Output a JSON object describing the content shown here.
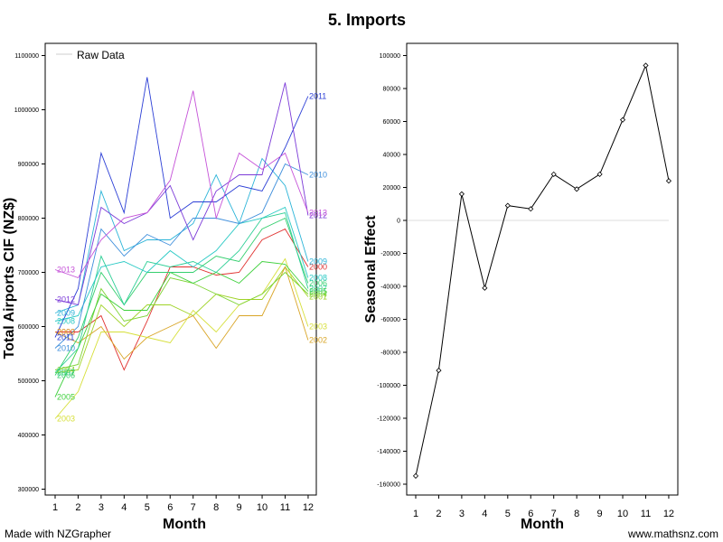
{
  "title": "5. Imports",
  "footer": {
    "left": "Made with NZGrapher",
    "right": "www.mathsnz.com"
  },
  "chart_data": [
    {
      "type": "line",
      "ylabel": "Total Airports CIF (NZ$)",
      "xlabel": "Month",
      "legend": {
        "label": "Raw Data",
        "position": "top-left"
      },
      "x": [
        1,
        2,
        3,
        4,
        5,
        6,
        7,
        8,
        9,
        10,
        11,
        12
      ],
      "ylim": [
        290000,
        1100000
      ],
      "yticks": [
        300000,
        400000,
        500000,
        600000,
        700000,
        800000,
        900000,
        1000000,
        1100000
      ],
      "series": [
        {
          "name": "2000",
          "color": "#e0302e",
          "values": [
            590000,
            590000,
            620000,
            520000,
            610000,
            710000,
            710000,
            695000,
            700000,
            760000,
            780000,
            710000
          ]
        },
        {
          "name": "2001",
          "color": "#9fd327",
          "values": [
            515000,
            520000,
            640000,
            600000,
            640000,
            640000,
            620000,
            660000,
            650000,
            650000,
            710000,
            655000
          ]
        },
        {
          "name": "2002",
          "color": "#d9a527",
          "values": [
            590000,
            570000,
            600000,
            540000,
            580000,
            600000,
            620000,
            560000,
            620000,
            620000,
            710000,
            575000
          ]
        },
        {
          "name": "2003",
          "color": "#d6df38",
          "values": [
            430000,
            480000,
            590000,
            590000,
            580000,
            570000,
            630000,
            590000,
            640000,
            660000,
            725000,
            600000
          ]
        },
        {
          "name": "2004",
          "color": "#7dd332",
          "values": [
            520000,
            530000,
            670000,
            610000,
            620000,
            690000,
            680000,
            660000,
            640000,
            660000,
            700000,
            660000
          ]
        },
        {
          "name": "2005",
          "color": "#3fd03d",
          "values": [
            470000,
            560000,
            660000,
            630000,
            630000,
            700000,
            680000,
            700000,
            680000,
            720000,
            715000,
            665000
          ]
        },
        {
          "name": "2006",
          "color": "#34cf6e",
          "values": [
            510000,
            580000,
            700000,
            640000,
            700000,
            700000,
            700000,
            730000,
            720000,
            780000,
            800000,
            680000
          ]
        },
        {
          "name": "2007",
          "color": "#2ecf96",
          "values": [
            515000,
            560000,
            730000,
            640000,
            720000,
            710000,
            720000,
            700000,
            740000,
            800000,
            810000,
            670000
          ]
        },
        {
          "name": "2008",
          "color": "#28c9c4",
          "values": [
            610000,
            620000,
            710000,
            720000,
            700000,
            740000,
            710000,
            740000,
            790000,
            800000,
            820000,
            690000
          ]
        },
        {
          "name": "2009",
          "color": "#2bb4d8",
          "values": [
            625000,
            640000,
            850000,
            740000,
            760000,
            760000,
            790000,
            880000,
            790000,
            910000,
            860000,
            720000
          ]
        },
        {
          "name": "2010",
          "color": "#3f8fdc",
          "values": [
            560000,
            600000,
            780000,
            730000,
            770000,
            750000,
            800000,
            800000,
            790000,
            810000,
            900000,
            880000
          ]
        },
        {
          "name": "2011",
          "color": "#2c3fd6",
          "values": [
            580000,
            670000,
            920000,
            810000,
            1060000,
            800000,
            830000,
            830000,
            860000,
            850000,
            930000,
            1025000
          ]
        },
        {
          "name": "2012",
          "color": "#7c3bd8",
          "values": [
            650000,
            640000,
            820000,
            790000,
            810000,
            860000,
            760000,
            850000,
            880000,
            880000,
            1050000,
            805000
          ]
        },
        {
          "name": "2013",
          "color": "#c552d8",
          "values": [
            705000,
            690000,
            760000,
            800000,
            810000,
            870000,
            1035000,
            800000,
            920000,
            890000,
            920000,
            810000
          ]
        }
      ]
    },
    {
      "type": "line",
      "ylabel": "Seasonal Effect",
      "xlabel": "Month",
      "x": [
        1,
        2,
        3,
        4,
        5,
        6,
        7,
        8,
        9,
        10,
        11,
        12
      ],
      "ylim": [
        -163000,
        105000
      ],
      "yticks": [
        -160000,
        -140000,
        -120000,
        -100000,
        -80000,
        -60000,
        -40000,
        -20000,
        0,
        20000,
        40000,
        60000,
        80000,
        100000
      ],
      "values": [
        -155000,
        -91000,
        16000,
        -41000,
        9000,
        7000,
        28000,
        19000,
        28000,
        61000,
        94000,
        24000
      ]
    }
  ]
}
